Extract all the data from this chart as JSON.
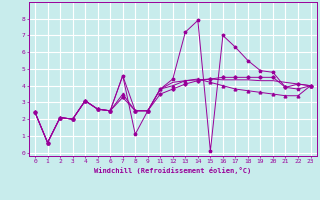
{
  "title": "",
  "xlabel": "Windchill (Refroidissement éolien,°C)",
  "ylabel": "",
  "bg_color": "#c8ecec",
  "grid_color": "#ffffff",
  "line_color": "#990099",
  "xlim": [
    -0.5,
    23.5
  ],
  "ylim": [
    -0.2,
    9.0
  ],
  "xtick_vals": [
    0,
    1,
    2,
    3,
    4,
    5,
    6,
    7,
    8,
    9,
    11,
    12,
    13,
    14,
    15,
    16,
    17,
    18,
    19,
    20,
    21,
    22,
    23
  ],
  "xtick_labels": [
    "0",
    "1",
    "2",
    "3",
    "4",
    "5",
    "6",
    "7",
    "8",
    "9",
    "11",
    "12",
    "13",
    "14",
    "15",
    "16",
    "17",
    "18",
    "19",
    "20",
    "21",
    "22",
    "23"
  ],
  "ytick_vals": [
    0,
    1,
    2,
    3,
    4,
    5,
    6,
    7,
    8
  ],
  "ytick_labels": [
    "0",
    "1",
    "2",
    "3",
    "4",
    "5",
    "6",
    "7",
    "8"
  ],
  "series1_x": [
    0,
    1,
    2,
    3,
    4,
    5,
    6,
    7,
    8,
    9,
    11,
    12,
    13,
    14,
    15,
    16,
    17,
    18,
    19,
    20,
    21,
    22,
    23
  ],
  "series1_y": [
    2.4,
    0.6,
    2.1,
    2.0,
    3.1,
    2.6,
    2.5,
    4.6,
    2.5,
    2.5,
    3.8,
    4.2,
    4.3,
    4.35,
    4.4,
    4.35,
    4.35,
    4.35,
    4.3,
    4.3,
    4.2,
    4.1,
    4.0
  ],
  "series2_x": [
    0,
    1,
    2,
    3,
    4,
    5,
    6,
    7,
    8,
    9,
    11,
    12,
    13,
    14,
    15,
    16,
    17,
    18,
    19,
    20,
    21,
    22,
    23
  ],
  "series2_y": [
    2.4,
    0.6,
    2.1,
    2.0,
    3.1,
    2.6,
    2.5,
    4.6,
    1.1,
    2.5,
    3.8,
    4.4,
    7.2,
    7.9,
    0.1,
    7.0,
    6.3,
    5.5,
    4.9,
    4.8,
    3.9,
    3.8,
    4.0
  ],
  "series3_x": [
    0,
    1,
    2,
    3,
    4,
    5,
    6,
    7,
    8,
    9,
    11,
    12,
    13,
    14,
    15,
    16,
    17,
    18,
    19,
    20,
    21,
    22,
    23
  ],
  "series3_y": [
    2.4,
    0.6,
    2.1,
    2.0,
    3.1,
    2.6,
    2.5,
    3.5,
    2.5,
    2.5,
    3.8,
    4.0,
    4.3,
    4.4,
    4.2,
    4.0,
    3.8,
    3.7,
    3.6,
    3.5,
    3.4,
    3.4,
    4.0
  ],
  "series4_x": [
    0,
    1,
    2,
    3,
    4,
    5,
    6,
    7,
    8,
    9,
    11,
    12,
    13,
    14,
    15,
    16,
    17,
    18,
    19,
    20,
    21,
    22,
    23
  ],
  "series4_y": [
    2.4,
    0.6,
    2.1,
    2.0,
    3.1,
    2.6,
    2.5,
    3.3,
    2.5,
    2.5,
    3.5,
    3.8,
    4.1,
    4.3,
    4.4,
    4.5,
    4.5,
    4.5,
    4.5,
    4.5,
    3.9,
    4.1,
    4.0
  ],
  "lw": 0.7,
  "ms": 2.0,
  "xlabel_fontsize": 5.0,
  "tick_fontsize": 4.5
}
